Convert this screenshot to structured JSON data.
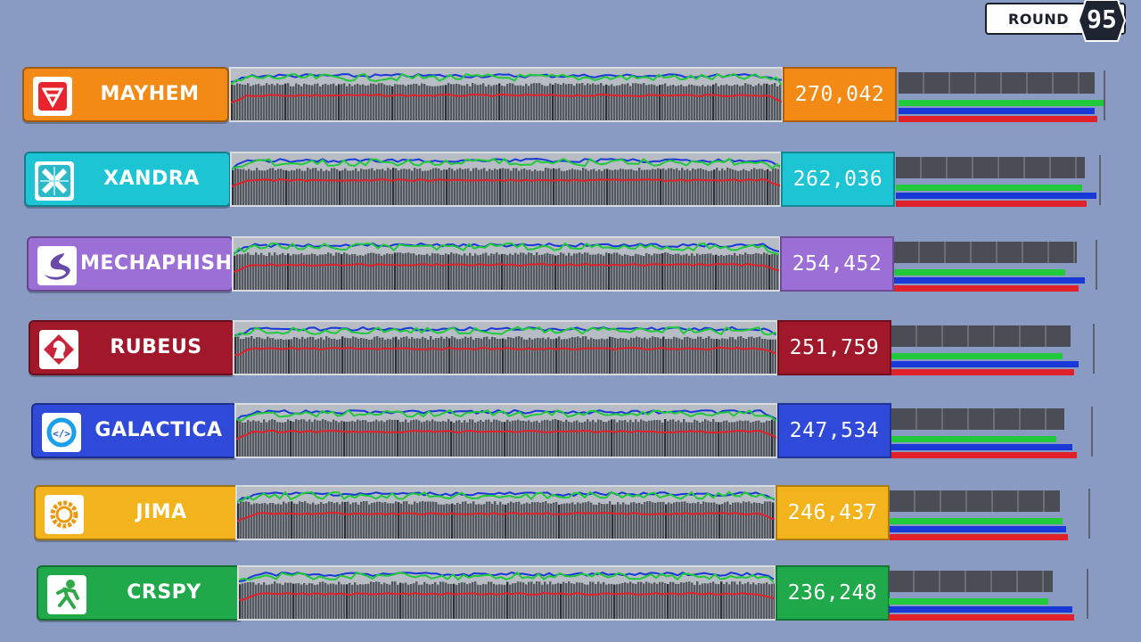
{
  "round": {
    "label": "ROUND",
    "number": "95"
  },
  "colors": {
    "green_line": "#22c93a",
    "blue_line": "#1838d8",
    "red_line": "#e0212a",
    "bar_gray": "#4a4d55"
  },
  "teams": [
    {
      "name": "MAYHEM",
      "score": "270,042",
      "color": "#f38a15",
      "score_color": "#f38a15",
      "logo_icon": "mayhem-a-icon",
      "bar_levels": {
        "gray": 0.95,
        "green": 1.0,
        "blue": 0.95,
        "red": 0.96
      }
    },
    {
      "name": "XANDRA",
      "score": "262,036",
      "color": "#1cc4d4",
      "score_color": "#1cc4d4",
      "logo_icon": "xandra-x-icon",
      "bar_levels": {
        "gray": 0.92,
        "green": 0.91,
        "blue": 0.98,
        "red": 0.93
      }
    },
    {
      "name": "MECHAPHISH",
      "score": "254,452",
      "color": "#9b6fd6",
      "score_color": "#9b6fd6",
      "logo_icon": "mechaphish-fish-icon",
      "bar_levels": {
        "gray": 0.9,
        "green": 0.84,
        "blue": 0.94,
        "red": 0.91
      }
    },
    {
      "name": "RUBEUS",
      "score": "251,759",
      "color": "#a2182b",
      "score_color": "#a2182b",
      "logo_icon": "rubeus-knight-icon",
      "bar_levels": {
        "gray": 0.88,
        "green": 0.84,
        "blue": 0.92,
        "red": 0.9
      }
    },
    {
      "name": "GALACTICA",
      "score": "247,534",
      "color": "#2f49d8",
      "score_color": "#2f49d8",
      "logo_icon": "galactica-code-icon",
      "bar_levels": {
        "gray": 0.86,
        "green": 0.82,
        "blue": 0.9,
        "red": 0.92
      }
    },
    {
      "name": "JIMA",
      "score": "246,437",
      "color": "#f2b31c",
      "score_color": "#f2b31c",
      "logo_icon": "jima-gear-icon",
      "bar_levels": {
        "gray": 0.85,
        "green": 0.86,
        "blue": 0.88,
        "red": 0.89
      }
    },
    {
      "name": "CRSPY",
      "score": "236,248",
      "color": "#1fa94a",
      "score_color": "#1fa94a",
      "logo_icon": "crspy-runner-icon",
      "bar_levels": {
        "gray": 0.82,
        "green": 0.8,
        "blue": 0.92,
        "red": 0.93
      }
    }
  ]
}
